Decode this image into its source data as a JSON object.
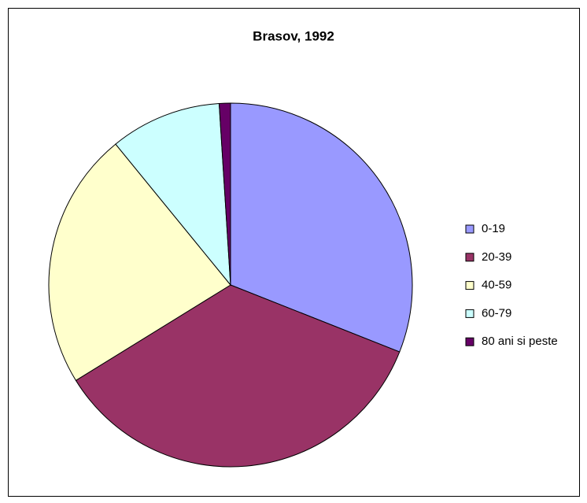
{
  "chart_data": {
    "type": "pie",
    "title": "Brasov, 1992",
    "categories": [
      "0-19",
      "20-39",
      "40-59",
      "60-79",
      "80 ani si peste"
    ],
    "values": [
      31,
      35.2,
      22.9,
      9.9,
      1.0
    ],
    "colors": [
      "#9999FF",
      "#993366",
      "#FFFFCC",
      "#CCFFFF",
      "#660066"
    ],
    "legend": "right"
  }
}
